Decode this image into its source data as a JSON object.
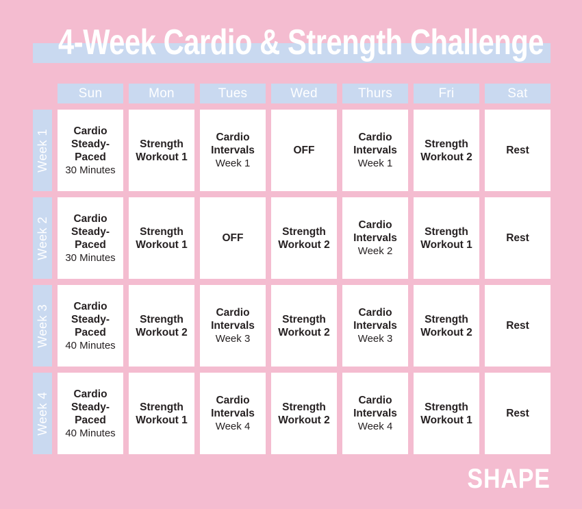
{
  "title": "4-Week Cardio & Strength Challenge",
  "brand": "SHAPE",
  "colors": {
    "background": "#f4bcd0",
    "accent_blue": "#c9d9f0",
    "cell_white": "#ffffff",
    "heading_text": "#ffffff",
    "cell_text": "#262122"
  },
  "table": {
    "day_headers": [
      "Sun",
      "Mon",
      "Tues",
      "Wed",
      "Thurs",
      "Fri",
      "Sat"
    ],
    "week_labels": [
      "Week 1",
      "Week 2",
      "Week 3",
      "Week 4"
    ],
    "rows": [
      [
        {
          "title_lines": [
            "Cardio",
            "Steady-",
            "Paced"
          ],
          "subtitle": "30 Minutes"
        },
        {
          "title_lines": [
            "Strength",
            "Workout 1"
          ],
          "subtitle": ""
        },
        {
          "title_lines": [
            "Cardio",
            "Intervals"
          ],
          "subtitle": "Week 1"
        },
        {
          "title_lines": [
            "OFF"
          ],
          "subtitle": ""
        },
        {
          "title_lines": [
            "Cardio",
            "Intervals"
          ],
          "subtitle": "Week 1"
        },
        {
          "title_lines": [
            "Strength",
            "Workout 2"
          ],
          "subtitle": ""
        },
        {
          "title_lines": [
            "Rest"
          ],
          "subtitle": ""
        }
      ],
      [
        {
          "title_lines": [
            "Cardio",
            "Steady-",
            "Paced"
          ],
          "subtitle": "30 Minutes"
        },
        {
          "title_lines": [
            "Strength",
            "Workout 1"
          ],
          "subtitle": ""
        },
        {
          "title_lines": [
            "OFF"
          ],
          "subtitle": ""
        },
        {
          "title_lines": [
            "Strength",
            "Workout 2"
          ],
          "subtitle": ""
        },
        {
          "title_lines": [
            "Cardio",
            "Intervals"
          ],
          "subtitle": "Week 2"
        },
        {
          "title_lines": [
            "Strength",
            "Workout 1"
          ],
          "subtitle": ""
        },
        {
          "title_lines": [
            "Rest"
          ],
          "subtitle": ""
        }
      ],
      [
        {
          "title_lines": [
            "Cardio",
            "Steady-",
            "Paced"
          ],
          "subtitle": "40 Minutes"
        },
        {
          "title_lines": [
            "Strength",
            "Workout 2"
          ],
          "subtitle": ""
        },
        {
          "title_lines": [
            "Cardio",
            "Intervals"
          ],
          "subtitle": "Week 3"
        },
        {
          "title_lines": [
            "Strength",
            "Workout 2"
          ],
          "subtitle": ""
        },
        {
          "title_lines": [
            "Cardio",
            "Intervals"
          ],
          "subtitle": "Week 3"
        },
        {
          "title_lines": [
            "Strength",
            "Workout 2"
          ],
          "subtitle": ""
        },
        {
          "title_lines": [
            "Rest"
          ],
          "subtitle": ""
        }
      ],
      [
        {
          "title_lines": [
            "Cardio",
            "Steady-",
            "Paced"
          ],
          "subtitle": "40 Minutes"
        },
        {
          "title_lines": [
            "Strength",
            "Workout 1"
          ],
          "subtitle": ""
        },
        {
          "title_lines": [
            "Cardio",
            "Intervals"
          ],
          "subtitle": "Week 4"
        },
        {
          "title_lines": [
            "Strength",
            "Workout 2"
          ],
          "subtitle": ""
        },
        {
          "title_lines": [
            "Cardio",
            "Intervals"
          ],
          "subtitle": "Week 4"
        },
        {
          "title_lines": [
            "Strength",
            "Workout 1"
          ],
          "subtitle": ""
        },
        {
          "title_lines": [
            "Rest"
          ],
          "subtitle": ""
        }
      ]
    ]
  }
}
